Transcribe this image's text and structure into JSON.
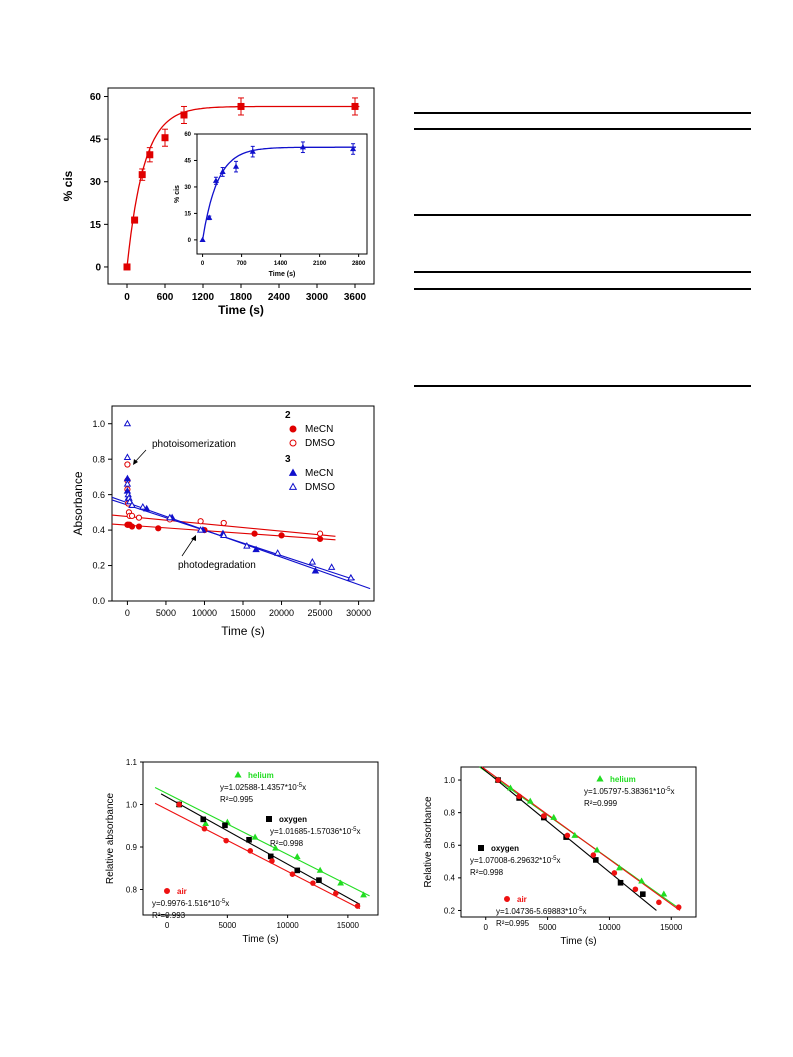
{
  "chart_data": [
    {
      "type": "scatter",
      "xlabel": "Time (s)",
      "ylabel": "% cis",
      "xlim": [
        -300,
        3900
      ],
      "ylim": [
        -6,
        63
      ],
      "xticks": [
        0,
        600,
        1200,
        1800,
        2400,
        3000,
        3600
      ],
      "yticks": [
        0,
        15,
        30,
        45,
        60
      ],
      "series": [
        {
          "color": "#e00000",
          "marker": "filled-square",
          "fit": "exponential",
          "x": [
            0,
            120,
            240,
            360,
            600,
            900,
            1800,
            3600
          ],
          "y": [
            0,
            16.5,
            32.5,
            39.5,
            45.5,
            53.5,
            56.5,
            56.5
          ],
          "err": [
            0,
            1,
            2,
            2.5,
            3,
            3,
            3,
            3
          ]
        }
      ],
      "inset": {
        "xlabel": "Time (s)",
        "ylabel": "% cis",
        "xlim": [
          -100,
          2950
        ],
        "ylim": [
          -8,
          60
        ],
        "xticks": [
          0,
          700,
          1400,
          2100,
          2800
        ],
        "yticks": [
          0,
          15,
          30,
          45,
          60
        ],
        "series": [
          {
            "color": "#1010cc",
            "marker": "filled-triangle",
            "fit": "exponential",
            "x": [
              0,
              120,
              240,
              360,
              600,
              900,
              1800,
              2700
            ],
            "y": [
              0,
              12.5,
              33.5,
              38.5,
              41.5,
              50,
              52.5,
              51.5
            ],
            "err": [
              0,
              1,
              2,
              2.5,
              3,
              3,
              3,
              3
            ]
          }
        ]
      }
    },
    {
      "type": "scatter",
      "xlabel": "Time (s)",
      "ylabel": "Absorbance",
      "xlim": [
        -2000,
        32000
      ],
      "ylim": [
        0,
        1.1
      ],
      "xticks": [
        0,
        5000,
        10000,
        15000,
        20000,
        25000,
        30000
      ],
      "yticks": [
        0.0,
        0.2,
        0.4,
        0.6,
        0.8,
        1.0
      ],
      "annotations": [
        "photoisomerization",
        "photodegradation"
      ],
      "legend": {
        "groups": [
          {
            "heading": "2",
            "entries": [
              "MeCN",
              "DMSO"
            ]
          },
          {
            "heading": "3",
            "entries": [
              "MeCN",
              "DMSO"
            ]
          }
        ]
      },
      "series": [
        {
          "name": "MeCN",
          "group": "2",
          "color": "#e00000",
          "marker": "filled-circle",
          "x": [
            0,
            100,
            300,
            600,
            1500,
            4000,
            10000,
            16500,
            20000,
            25000
          ],
          "y": [
            0.43,
            0.43,
            0.43,
            0.42,
            0.42,
            0.41,
            0.4,
            0.38,
            0.37,
            0.35
          ],
          "fit": [
            [
              -2000,
              0.434
            ],
            [
              27000,
              0.345
            ]
          ]
        },
        {
          "name": "DMSO",
          "group": "2",
          "color": "#e00000",
          "marker": "open-circle",
          "x": [
            0,
            0,
            0,
            100,
            200,
            300,
            600,
            1500,
            5500,
            9500,
            12500,
            25000
          ],
          "y": [
            0.77,
            0.68,
            0.63,
            0.55,
            0.5,
            0.48,
            0.48,
            0.47,
            0.46,
            0.45,
            0.44,
            0.38
          ],
          "fit": [
            [
              -2000,
              0.485
            ],
            [
              27000,
              0.365
            ]
          ]
        },
        {
          "name": "MeCN",
          "group": "3",
          "color": "#1010cc",
          "marker": "filled-triangle",
          "x": [
            0,
            0,
            100,
            300,
            600,
            2500,
            5800,
            9800,
            12400,
            16700,
            24400,
            29000
          ],
          "y": [
            0.69,
            0.62,
            0.58,
            0.56,
            0.54,
            0.52,
            0.47,
            0.4,
            0.38,
            0.29,
            0.17,
            0.13
          ],
          "fit": [
            [
              -2000,
              0.585
            ],
            [
              31500,
              0.07
            ]
          ]
        },
        {
          "name": "DMSO",
          "group": "3",
          "color": "#1010cc",
          "marker": "open-triangle",
          "x": [
            0,
            0,
            0,
            100,
            200,
            300,
            600,
            2000,
            5500,
            9500,
            12500,
            15500,
            19500,
            24000,
            26500,
            29000
          ],
          "y": [
            1.0,
            0.81,
            0.66,
            0.6,
            0.58,
            0.56,
            0.54,
            0.53,
            0.47,
            0.4,
            0.37,
            0.31,
            0.27,
            0.22,
            0.19,
            0.13
          ],
          "fit": [
            [
              -2000,
              0.57
            ],
            [
              29500,
              0.12
            ]
          ]
        }
      ]
    },
    {
      "type": "scatter",
      "xlabel": "Time (s)",
      "ylabel": "Relative absorbance",
      "xlim": [
        -2000,
        17500
      ],
      "ylim": [
        0.74,
        1.1
      ],
      "xticks": [
        0,
        5000,
        10000,
        15000
      ],
      "yticks": [
        0.8,
        0.9,
        1.0,
        1.1
      ],
      "series": [
        {
          "name": "helium",
          "color": "#22dd22",
          "marker": "filled-triangle",
          "equation": "y=1.02588-1.4357*10",
          "exponent": "-5",
          "var": "x",
          "r2": "R²=0.995",
          "x": [
            1000,
            3200,
            5000,
            7300,
            9000,
            10800,
            12700,
            14400,
            16300
          ],
          "y": [
            1.0,
            0.955,
            0.958,
            0.923,
            0.897,
            0.877,
            0.845,
            0.815,
            0.787
          ],
          "fit": [
            [
              -1000,
              1.04
            ],
            [
              16800,
              0.785
            ]
          ]
        },
        {
          "name": "oxygen",
          "color": "#000000",
          "marker": "filled-square",
          "equation": "y=1.01685-1.57036*10",
          "exponent": "-5",
          "var": "x",
          "r2": "R²=0.998",
          "x": [
            1000,
            3000,
            4800,
            6800,
            8600,
            10800,
            12600
          ],
          "y": [
            1.0,
            0.965,
            0.951,
            0.917,
            0.878,
            0.845,
            0.822
          ],
          "fit": [
            [
              -500,
              1.025
            ],
            [
              16000,
              0.765
            ]
          ]
        },
        {
          "name": "air",
          "color": "#ee1111",
          "marker": "filled-circle",
          "equation": "y=0.9976-1.516*10",
          "exponent": "-5",
          "var": "x",
          "r2": "R²=0.993",
          "x": [
            1000,
            3100,
            4900,
            6900,
            8700,
            10400,
            12100,
            14000,
            15800
          ],
          "y": [
            1.0,
            0.943,
            0.915,
            0.891,
            0.867,
            0.836,
            0.815,
            0.791,
            0.761
          ],
          "fit": [
            [
              -1000,
              1.003
            ],
            [
              16000,
              0.755
            ]
          ]
        }
      ]
    },
    {
      "type": "scatter",
      "xlabel": "Time (s)",
      "ylabel": "Relative absorbance",
      "xlim": [
        -2000,
        17000
      ],
      "ylim": [
        0.16,
        1.08
      ],
      "xticks": [
        0,
        5000,
        10000,
        15000
      ],
      "yticks": [
        0.2,
        0.4,
        0.6,
        0.8,
        1.0
      ],
      "series": [
        {
          "name": "helium",
          "color": "#22dd22",
          "marker": "filled-triangle",
          "equation": "y=1.05797-5.38361*10",
          "exponent": "-5",
          "var": "x",
          "r2": "R²=0.999",
          "x": [
            1000,
            2000,
            3600,
            5500,
            7200,
            9000,
            10800,
            12600,
            14400
          ],
          "y": [
            1.0,
            0.95,
            0.87,
            0.77,
            0.66,
            0.57,
            0.46,
            0.38,
            0.3
          ],
          "fit": [
            [
              -500,
              1.08
            ],
            [
              15500,
              0.22
            ]
          ]
        },
        {
          "name": "oxygen",
          "color": "#000000",
          "marker": "filled-square",
          "equation": "y=1.07008-6.29632*10",
          "exponent": "-5",
          "var": "x",
          "r2": "R²=0.998",
          "x": [
            1000,
            2700,
            4700,
            6500,
            8900,
            10900,
            12700
          ],
          "y": [
            1.0,
            0.89,
            0.77,
            0.65,
            0.51,
            0.37,
            0.3
          ],
          "fit": [
            [
              -400,
              1.08
            ],
            [
              13800,
              0.2
            ]
          ]
        },
        {
          "name": "air",
          "color": "#ee1111",
          "marker": "filled-circle",
          "equation": "y=1.04736-5.69883*10",
          "exponent": "-5",
          "var": "x",
          "r2": "R²=0.995",
          "x": [
            1000,
            2700,
            4700,
            6600,
            8700,
            10400,
            12100,
            14000,
            15600
          ],
          "y": [
            1.0,
            0.9,
            0.78,
            0.66,
            0.54,
            0.43,
            0.33,
            0.25,
            0.22
          ],
          "fit": [
            [
              -300,
              1.08
            ],
            [
              15700,
              0.2
            ]
          ]
        }
      ]
    }
  ]
}
